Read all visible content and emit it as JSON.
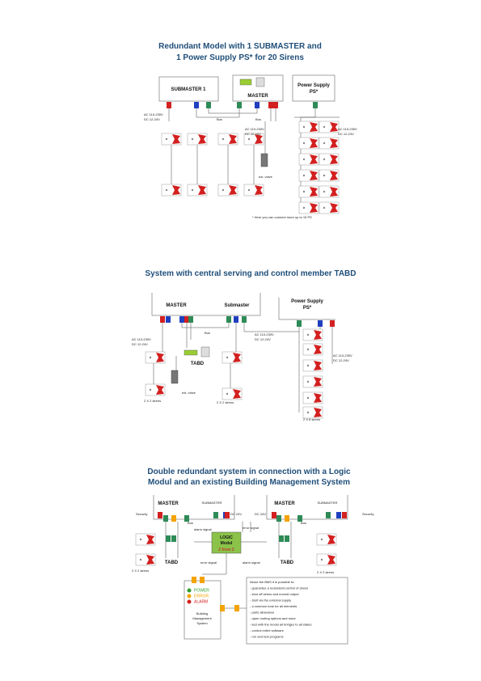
{
  "diagram_1": {
    "title": [
      "Redundant Model with 1 SUBMASTER and",
      "1 Power Supply PS* for 20 Sirens"
    ],
    "submaster": "SUBMASTER 1",
    "master": "MASTER",
    "power_supply": [
      "Power Supply",
      "PS*"
    ],
    "supply_left": [
      "AC 110-230V",
      "DC 12-24V"
    ],
    "bus": [
      "Bus",
      "Bus"
    ],
    "supply_middle": [
      "AC 110-230V",
      "DC 12-24V"
    ],
    "supply_right": [
      "AC 110-230V",
      "DC 12-24V"
    ],
    "valve": "ext. valve",
    "note": "* Here you can connect more up to 15 PS"
  },
  "diagram_2": {
    "title": "System with central serving and control member TABD",
    "master": "MASTER",
    "submaster": "Submaster",
    "power_supply": [
      "Power Supply",
      "PS*"
    ],
    "supply_left": [
      "AC 110-230V",
      "DC 12-24V"
    ],
    "bus": "Bus",
    "supply_middle": [
      "AC 110-230V",
      "DC 12-24V"
    ],
    "supply_right": [
      "AC 110-230V",
      "DC 12-24V"
    ],
    "tabd": "TABD",
    "valve": "ext. valve",
    "sirens": [
      "2 X 2 sirens",
      "2 X 2 sirens",
      "2 X 8 sirens"
    ]
  },
  "diagram_3": {
    "title": [
      "Double redundant system in connection with a Logic",
      "Modul and an existing Building Management System"
    ],
    "masters": [
      "MASTER",
      "SUBMASTER",
      "MASTER",
      "SUBMASTER"
    ],
    "security": [
      "Security",
      "Security"
    ],
    "dc": [
      "DC 24V",
      "DC 24V"
    ],
    "bus": [
      "Bus",
      "Bus"
    ],
    "logic": [
      "LOGIC",
      "Modul",
      "2 from 2"
    ],
    "signals": [
      "alarm signal",
      "error signal",
      "error signal",
      "alarm signal"
    ],
    "tabd": [
      "TABD",
      "TABD"
    ],
    "sirens": [
      "2 X 2 sirens",
      "2 X 2 sirens"
    ],
    "legend": [
      "POWER",
      "ERROR",
      "ALARM"
    ],
    "bms": [
      "Building",
      "Management",
      "System"
    ],
    "bms_text": [
      "About the BMS it is possible to:",
      "- guarantee a redundant control of sirens",
      "- shut off sirens and normal output",
      "- start via the external supply",
      "- a common tone for all elements",
      "- parts allowance",
      "- open routing options and more",
      "- test with the modul all bridges to all states",
      "- control entire software",
      "- run and test programs"
    ]
  }
}
